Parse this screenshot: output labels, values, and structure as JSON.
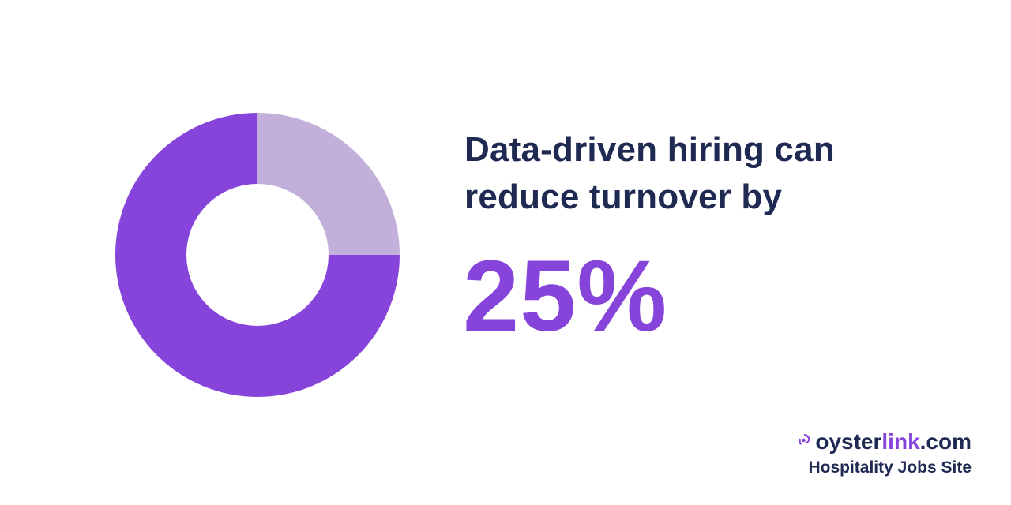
{
  "headline": {
    "line1": "Data-driven hiring can",
    "line2": "reduce turnover by"
  },
  "stat": {
    "value_text": "25%"
  },
  "brand": {
    "wordmark_part1": "oyster",
    "wordmark_part2": "link",
    "wordmark_part3": ".com",
    "tagline": "Hospitality Jobs Site",
    "logo_icon": "oyster-swirl-icon"
  },
  "colors": {
    "primary_purple": "#8644db",
    "light_purple": "#c2b0da",
    "navy_text": "#1f2a52",
    "background": "#ffffff"
  },
  "chart_data": {
    "type": "pie",
    "style": "donut",
    "title": "",
    "slices": [
      {
        "value": 25,
        "color": "#c2b0da"
      },
      {
        "value": 75,
        "color": "#8644db"
      }
    ],
    "start_angle": "12 o'clock",
    "direction": "clockwise",
    "legend": "none",
    "data_labels": false
  }
}
